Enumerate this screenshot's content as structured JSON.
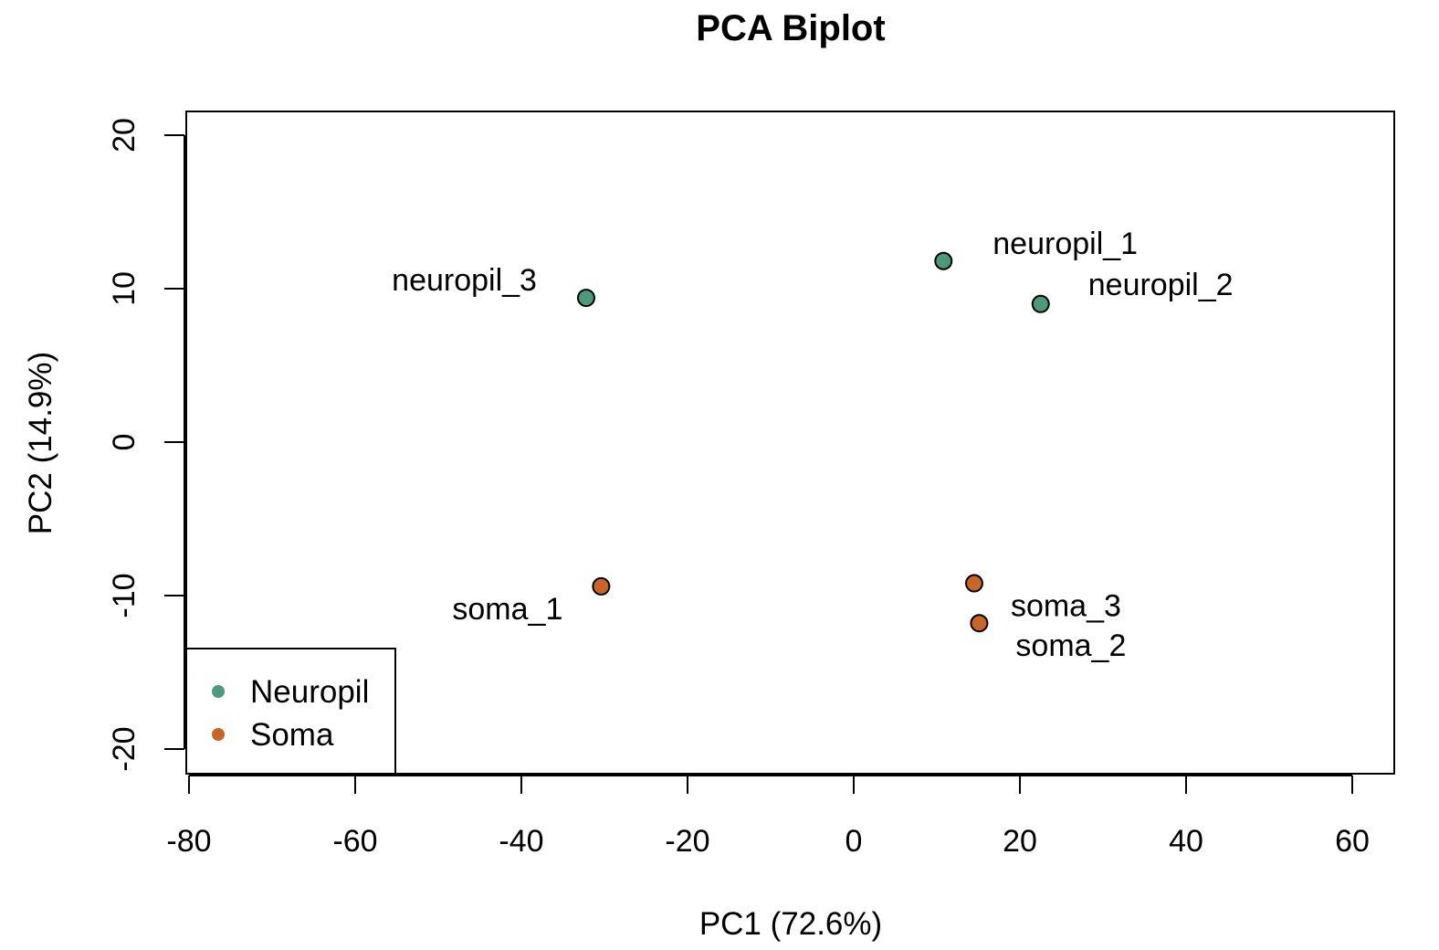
{
  "chart_data": {
    "type": "scatter",
    "title": "PCA Biplot",
    "xlabel": "PC1 (72.6%)",
    "ylabel": "PC2 (14.9%)",
    "xlim": [
      -80,
      65
    ],
    "ylim": [
      -21.5,
      21.5
    ],
    "xticks": [
      -80,
      -60,
      -40,
      -20,
      0,
      20,
      40,
      60
    ],
    "yticks": [
      -20,
      -10,
      0,
      10,
      20
    ],
    "grid": false,
    "legend": {
      "placement": "bottom-left",
      "entries": [
        {
          "label": "Neuropil",
          "color": "#4c9a7a"
        },
        {
          "label": "Soma",
          "color": "#c8652b"
        }
      ]
    },
    "series": [
      {
        "name": "Neuropil",
        "color": "#4c9a7a",
        "points": [
          {
            "label": "neuropil_1",
            "x": 10.8,
            "y": 11.8
          },
          {
            "label": "neuropil_2",
            "x": 22.5,
            "y": 9.0
          },
          {
            "label": "neuropil_3",
            "x": -32.2,
            "y": 9.4
          }
        ]
      },
      {
        "name": "Soma",
        "color": "#c8652b",
        "points": [
          {
            "label": "soma_1",
            "x": -30.4,
            "y": -9.4
          },
          {
            "label": "soma_2",
            "x": 15.1,
            "y": -11.8
          },
          {
            "label": "soma_3",
            "x": 14.5,
            "y": -9.2
          }
        ]
      }
    ]
  }
}
